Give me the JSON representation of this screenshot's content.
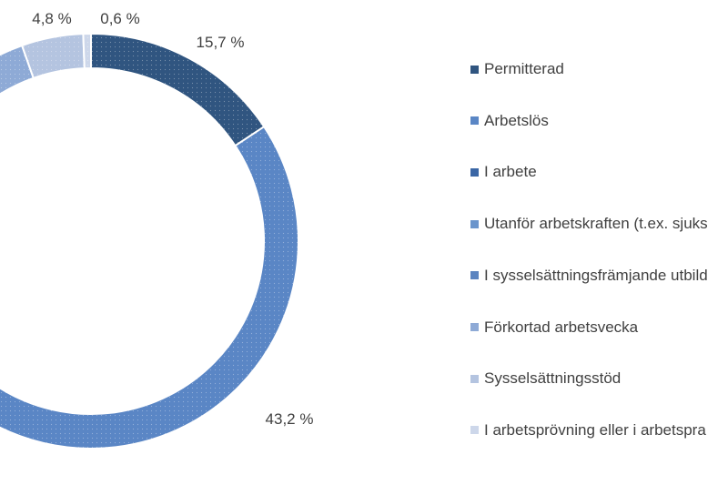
{
  "chart_data": {
    "type": "pie",
    "subtype": "donut",
    "title": "",
    "legend_position": "right",
    "categories": [
      "Permitterad",
      "Arbetslös",
      "I arbete",
      "Utanför arbetskraften (t.ex. sjuks",
      "I sysselsättningsfrämjande utbild",
      "Förkortad arbetsvecka",
      "Sysselsättningsstöd",
      "I arbetsprövning eller i arbetspra"
    ],
    "values": [
      15.7,
      43.2,
      null,
      null,
      null,
      null,
      4.8,
      0.6
    ],
    "value_labels": [
      "15,7 %",
      "43,2 %",
      "",
      "",
      "",
      "",
      "4,8 %",
      "0,6 %"
    ],
    "colors": [
      "#305580",
      "#5a86c5",
      "#3a66a5",
      "#6b95cc",
      "#5b84c0",
      "#8eaad6",
      "#b4c4e0",
      "#cdd7ea"
    ]
  }
}
